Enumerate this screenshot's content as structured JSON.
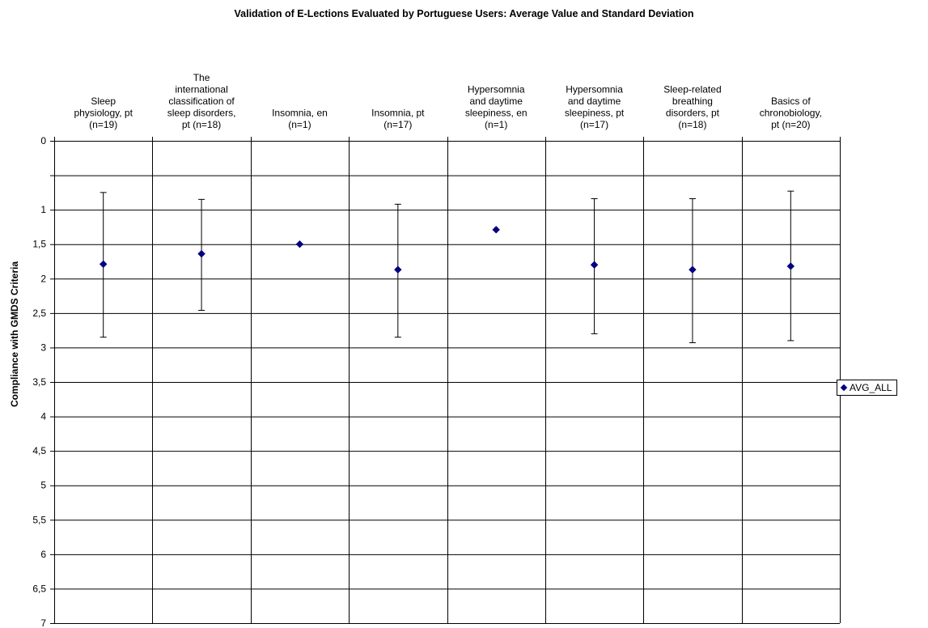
{
  "chart_data": {
    "type": "scatter",
    "title": "Validation of E-Lections Evaluated by Portuguese Users: Average Value and Standard Deviation",
    "xlabel": "",
    "ylabel": "Compliance with GMDS Criteria",
    "y_axis_reversed": true,
    "ylim": [
      0,
      7
    ],
    "y_ticks": [
      {
        "value": 0,
        "label": "0"
      },
      {
        "value": 1,
        "label": "1"
      },
      {
        "value": 1.5,
        "label": "1,5"
      },
      {
        "value": 2,
        "label": "2"
      },
      {
        "value": 2.5,
        "label": "2,5"
      },
      {
        "value": 3,
        "label": "3"
      },
      {
        "value": 3.5,
        "label": "3,5"
      },
      {
        "value": 4,
        "label": "4"
      },
      {
        "value": 4.5,
        "label": "4,5"
      },
      {
        "value": 5,
        "label": "5"
      },
      {
        "value": 5.5,
        "label": "5,5"
      },
      {
        "value": 6,
        "label": "6"
      },
      {
        "value": 6.5,
        "label": "6,5"
      },
      {
        "value": 7,
        "label": "7"
      }
    ],
    "grid": true,
    "legend_position": "right",
    "categories": [
      [
        "Sleep",
        "physiology, pt",
        "(n=19)"
      ],
      [
        "The",
        "international",
        "classification of",
        "sleep disorders,",
        "pt (n=18)"
      ],
      [
        "Insomnia, en",
        "(n=1)"
      ],
      [
        "Insomnia, pt",
        "(n=17)"
      ],
      [
        "Hypersomnia",
        "and daytime",
        "sleepiness, en",
        "(n=1)"
      ],
      [
        "Hypersomnia",
        "and daytime",
        "sleepiness, pt",
        "(n=17)"
      ],
      [
        "Sleep-related",
        "breathing",
        "disorders, pt",
        "(n=18)"
      ],
      [
        "Basics of",
        "chronobiology,",
        "pt (n=20)"
      ]
    ],
    "series": [
      {
        "name": "AVG_ALL",
        "color": "#000080",
        "values": [
          1.79,
          1.64,
          1.5,
          1.87,
          1.29,
          1.8,
          1.87,
          1.82
        ],
        "error_low": [
          0.75,
          0.85,
          null,
          0.92,
          null,
          0.84,
          0.84,
          0.73
        ],
        "error_high": [
          2.85,
          2.46,
          null,
          2.85,
          null,
          2.8,
          2.93,
          2.9
        ]
      }
    ]
  }
}
